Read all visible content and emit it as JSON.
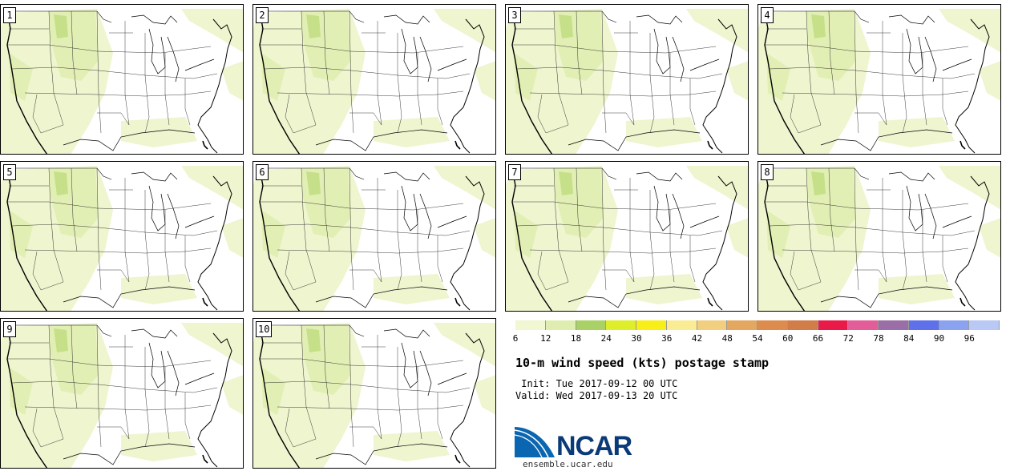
{
  "panels": [
    "1",
    "2",
    "3",
    "4",
    "5",
    "6",
    "7",
    "8",
    "9",
    "10"
  ],
  "legend": {
    "ticks": [
      "6",
      "12",
      "18",
      "24",
      "30",
      "36",
      "42",
      "48",
      "54",
      "60",
      "66",
      "72",
      "78",
      "84",
      "90",
      "96"
    ],
    "colors": [
      "#f1f7d2",
      "#dfeeb0",
      "#a9d166",
      "#dfee2a",
      "#f8ee18",
      "#faec93",
      "#f2cf7e",
      "#e4a760",
      "#dd8c4e",
      "#d27c47",
      "#ea1a48",
      "#e35e99",
      "#9a6ea6",
      "#5f71ea",
      "#8aa2f0",
      "#b9c8f4"
    ]
  },
  "title": "10-m wind speed (kts) postage stamp",
  "init": " Init: Tue 2017-09-12 00 UTC",
  "valid": "Valid: Wed 2017-09-13 20 UTC",
  "logo": {
    "text": "NCAR",
    "url": "ensemble.ucar.edu"
  }
}
